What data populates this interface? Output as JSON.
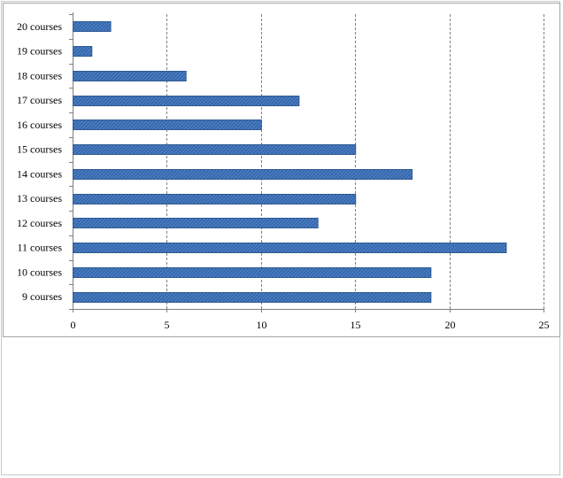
{
  "chart_data": {
    "type": "bar",
    "orientation": "horizontal",
    "categories": [
      "9 courses",
      "10 courses",
      "11 courses",
      "12 courses",
      "13 courses",
      "14 courses",
      "15 courses",
      "16 courses",
      "17 courses",
      "18 courses",
      "19 courses",
      "20 courses"
    ],
    "values": [
      19,
      19,
      23,
      13,
      15,
      18,
      15,
      10,
      12,
      6,
      1,
      2
    ],
    "x_ticks": [
      0,
      5,
      10,
      15,
      20,
      25
    ],
    "xlim": [
      0,
      25
    ],
    "title": "",
    "xlabel": "",
    "ylabel": "",
    "grid": "vertical dashed",
    "legend": "none",
    "bar_color": "#4472C4"
  }
}
